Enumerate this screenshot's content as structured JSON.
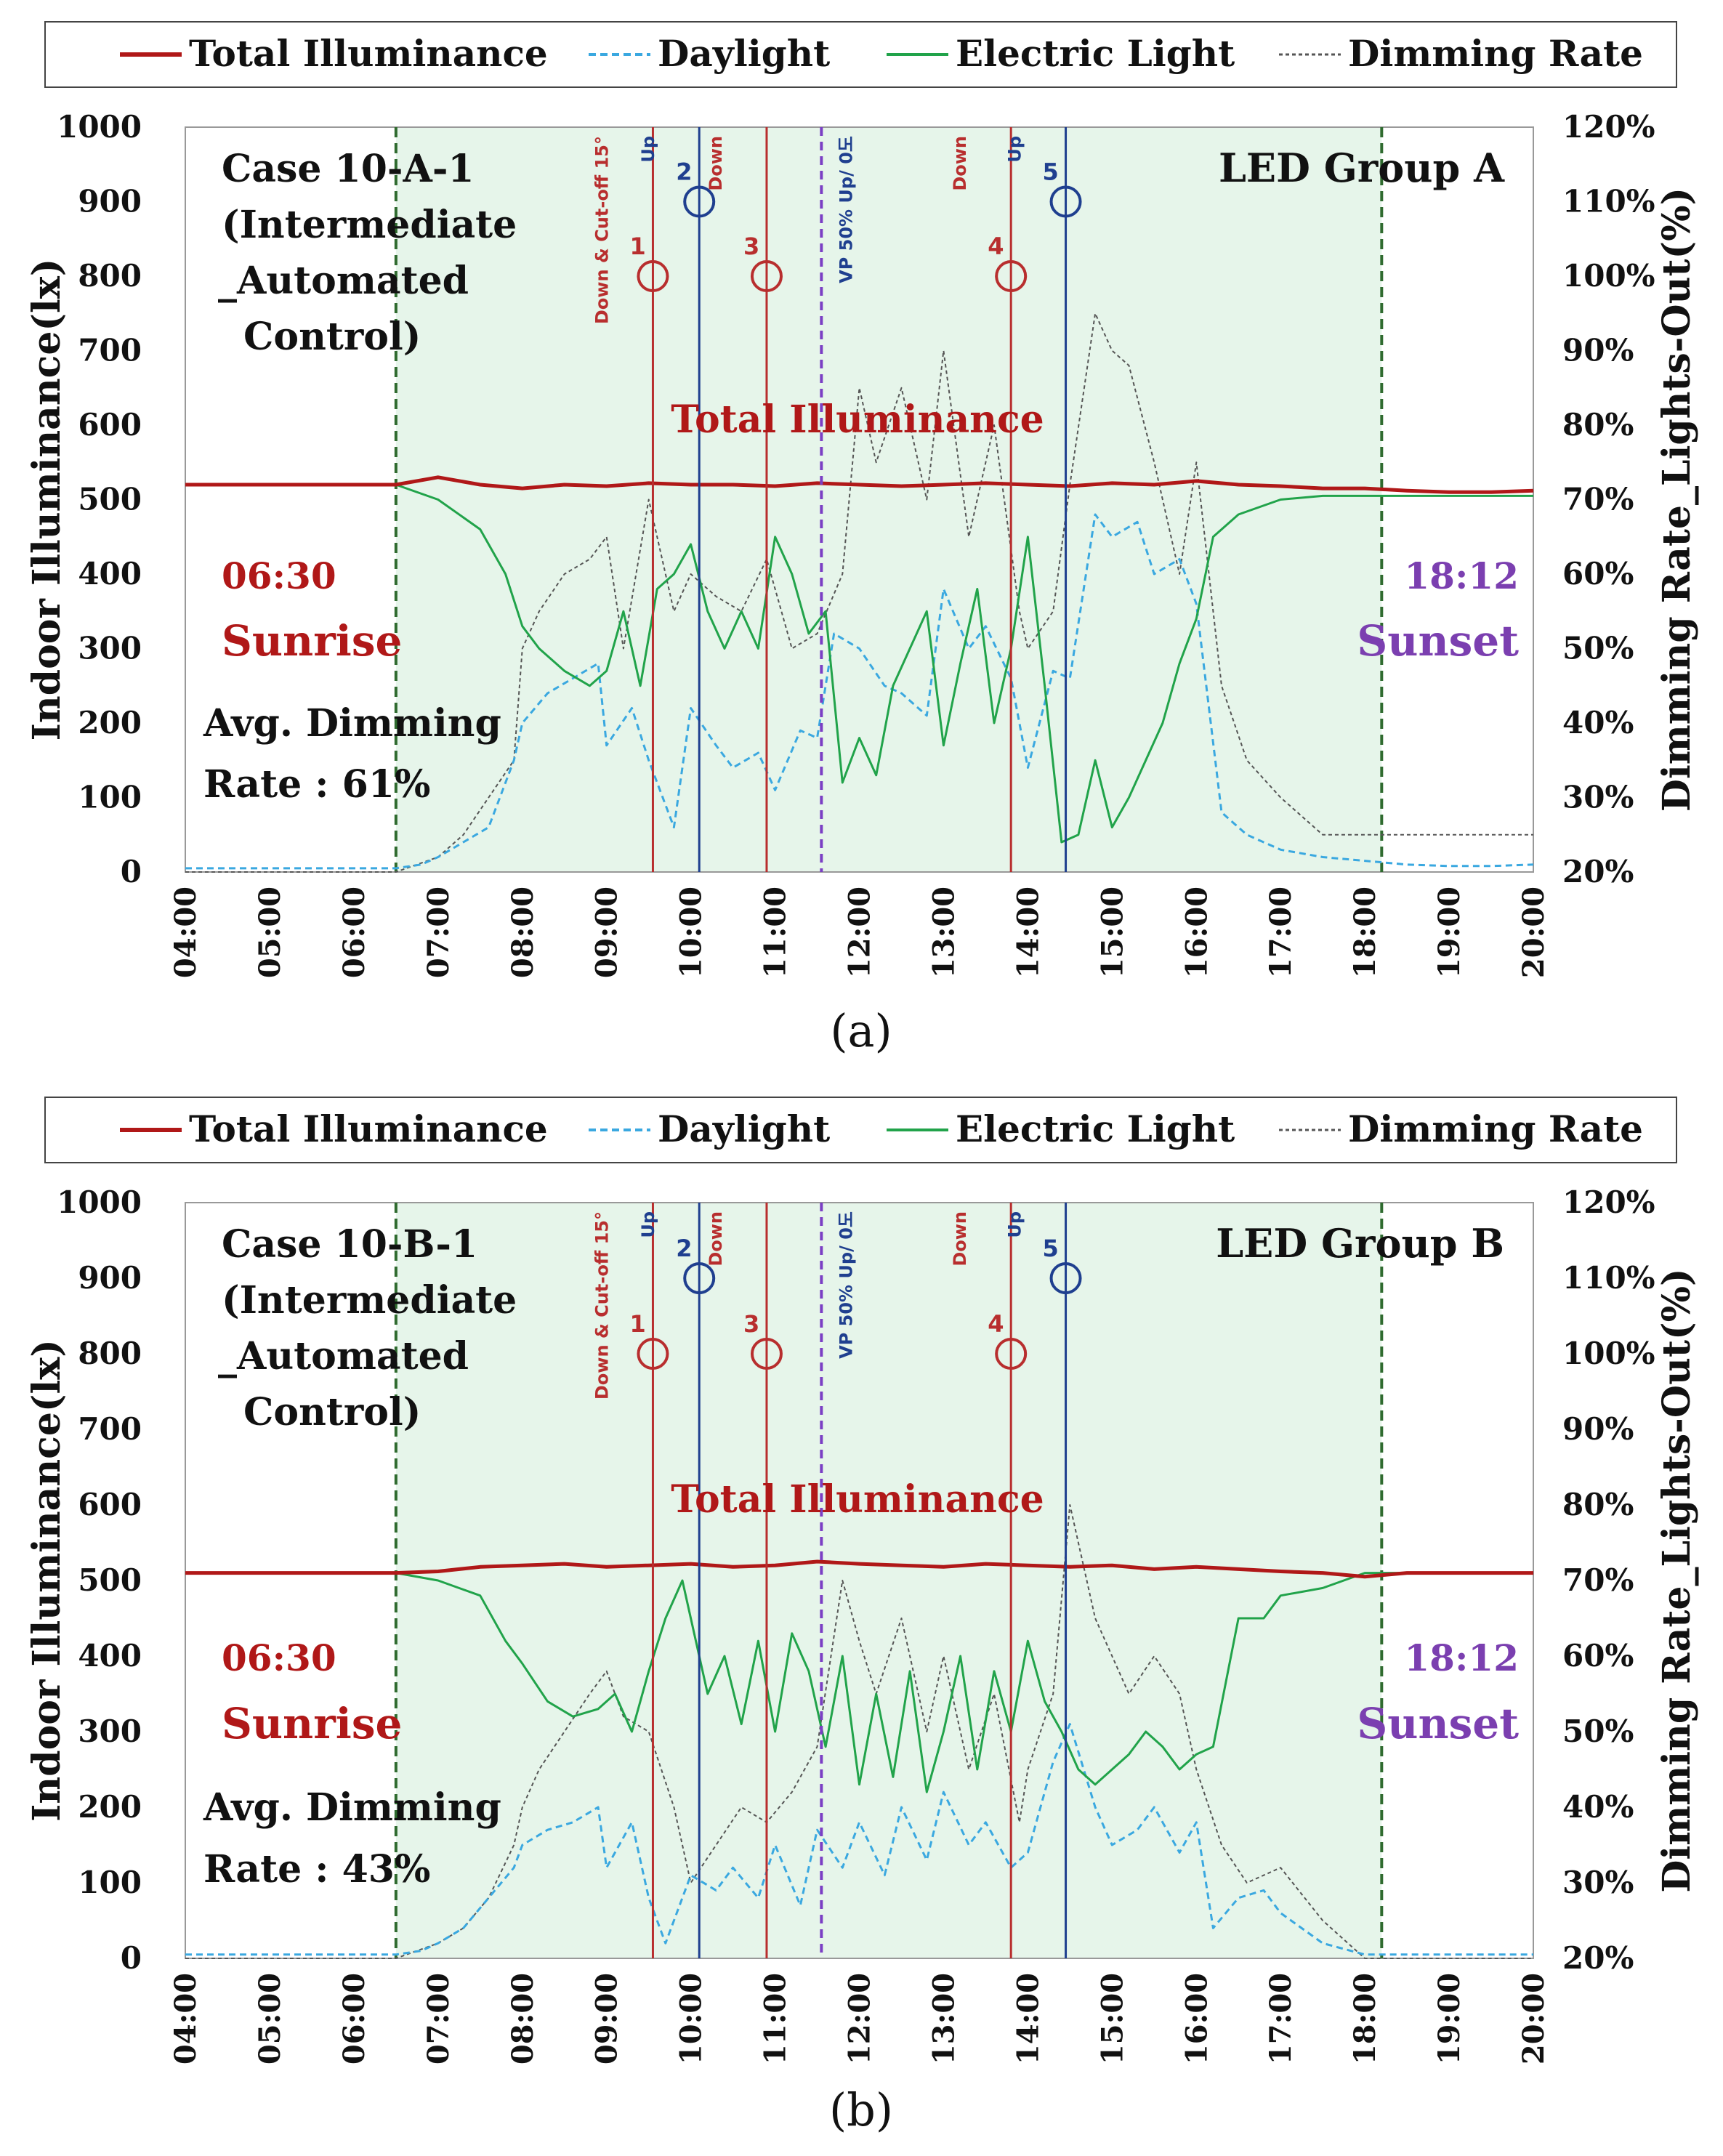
{
  "legend": {
    "total": "Total Illuminance",
    "daylight": "Daylight",
    "electric": "Electric Light",
    "dimming": "Dimming Rate"
  },
  "colors": {
    "total": "#b01818",
    "daylight": "#3aa8e0",
    "electric": "#21a34a",
    "dimming": "#555555",
    "occupied_bg": "#e6f5ea",
    "red_event": "#b82e2e",
    "blue_event": "#1f3f8f",
    "vp_line": "#7b3fc4",
    "sunrise_text": "#b01818",
    "sunset_text": "#7b3fb0"
  },
  "chart_data": [
    {
      "type": "line",
      "panel_label": "(a)",
      "case_title": [
        "Case 10-A-1",
        "(Intermediate",
        "_Automated",
        "Control)"
      ],
      "group_label": "LED Group A",
      "ylabel": "Indoor Illuminance(lx)",
      "ylabel_right": "Dimming Rate_Lights-Out(%)",
      "y_ticks": [
        "1000",
        "900",
        "800",
        "700",
        "600",
        "500",
        "400",
        "300",
        "200",
        "100",
        "0"
      ],
      "y2_ticks": [
        "120%",
        "110%",
        "100%",
        "90%",
        "80%",
        "70%",
        "60%",
        "50%",
        "40%",
        "30%",
        "20%"
      ],
      "x_ticks": [
        "04:00",
        "05:00",
        "06:00",
        "07:00",
        "08:00",
        "09:00",
        "10:00",
        "11:00",
        "12:00",
        "13:00",
        "14:00",
        "15:00",
        "16:00",
        "17:00",
        "18:00",
        "19:00",
        "20:00"
      ],
      "xlim": [
        4,
        20
      ],
      "ylim": [
        0,
        1000
      ],
      "y2lim": [
        20,
        120
      ],
      "sunrise_time": "06:30",
      "sunrise_label": "Sunrise",
      "sunrise_hour": 6.5,
      "sunset_time": "18:12",
      "sunset_label": "Sunset",
      "sunset_hour": 18.2,
      "total_annotation": "Total Illuminance",
      "avg_dimming": [
        "Avg. Dimming",
        "Rate : 61%"
      ],
      "vp_hour": 11.55,
      "vp_label": "VP 50% Up/ 0도",
      "events": [
        {
          "num": "1",
          "label": "Down & Cut-off 15°",
          "hour": 9.55,
          "color": "red",
          "circle_y": 800
        },
        {
          "num": "2",
          "label": "Up",
          "hour": 10.1,
          "color": "blue",
          "circle_y": 900
        },
        {
          "num": "3",
          "label": "Down",
          "hour": 10.9,
          "color": "red",
          "circle_y": 800
        },
        {
          "num": "4",
          "label": "Down",
          "hour": 13.8,
          "color": "red",
          "circle_y": 800
        },
        {
          "num": "5",
          "label": "Up",
          "hour": 14.45,
          "color": "blue",
          "circle_y": 900
        }
      ],
      "series": [
        {
          "name": "Total Illuminance",
          "unit": "lx",
          "x": [
            4,
            6.5,
            7,
            7.5,
            8,
            8.5,
            9,
            9.5,
            10,
            10.5,
            11,
            11.5,
            12,
            12.5,
            13,
            13.5,
            14,
            14.5,
            15,
            15.5,
            16,
            16.5,
            17,
            17.5,
            18,
            18.5,
            19,
            19.5,
            20
          ],
          "y": [
            520,
            520,
            530,
            520,
            515,
            520,
            518,
            522,
            520,
            520,
            518,
            522,
            520,
            518,
            520,
            522,
            520,
            518,
            522,
            520,
            525,
            520,
            518,
            515,
            515,
            512,
            510,
            510,
            512
          ]
        },
        {
          "name": "Daylight",
          "unit": "lx",
          "x": [
            4,
            6.5,
            6.8,
            7,
            7.3,
            7.6,
            7.9,
            8,
            8.3,
            8.6,
            8.9,
            9,
            9.3,
            9.5,
            9.8,
            10,
            10.3,
            10.5,
            10.8,
            11,
            11.3,
            11.5,
            11.7,
            12,
            12.3,
            12.5,
            12.8,
            13,
            13.3,
            13.5,
            13.8,
            14,
            14.3,
            14.5,
            14.8,
            15,
            15.3,
            15.5,
            15.8,
            16,
            16.3,
            16.6,
            17,
            17.5,
            18,
            18.5,
            19,
            19.5,
            20
          ],
          "y": [
            5,
            5,
            10,
            20,
            40,
            60,
            150,
            200,
            240,
            260,
            280,
            170,
            220,
            150,
            60,
            220,
            170,
            140,
            160,
            110,
            190,
            180,
            320,
            300,
            250,
            240,
            210,
            380,
            300,
            330,
            260,
            140,
            270,
            260,
            480,
            450,
            470,
            400,
            420,
            360,
            80,
            50,
            30,
            20,
            15,
            10,
            8,
            8,
            10
          ]
        },
        {
          "name": "Electric Light",
          "unit": "lx",
          "x": [
            4,
            6.5,
            7,
            7.5,
            7.8,
            8,
            8.2,
            8.5,
            8.8,
            9,
            9.2,
            9.4,
            9.6,
            9.8,
            10,
            10.2,
            10.4,
            10.6,
            10.8,
            11,
            11.2,
            11.4,
            11.6,
            11.8,
            12,
            12.2,
            12.4,
            12.6,
            12.8,
            13,
            13.2,
            13.4,
            13.6,
            13.8,
            14,
            14.2,
            14.4,
            14.6,
            14.8,
            15,
            15.2,
            15.4,
            15.6,
            15.8,
            16,
            16.2,
            16.5,
            17,
            17.5,
            18,
            18.5,
            19,
            19.5,
            20
          ],
          "y": [
            520,
            520,
            500,
            460,
            400,
            330,
            300,
            270,
            250,
            270,
            350,
            250,
            380,
            400,
            440,
            350,
            300,
            350,
            300,
            450,
            400,
            320,
            350,
            120,
            180,
            130,
            250,
            300,
            350,
            170,
            280,
            380,
            200,
            300,
            450,
            250,
            40,
            50,
            150,
            60,
            100,
            150,
            200,
            280,
            340,
            450,
            480,
            500,
            505,
            505,
            505,
            505,
            505,
            505
          ]
        },
        {
          "name": "Dimming Rate",
          "unit": "%",
          "x": [
            4,
            6.5,
            7,
            7.3,
            7.6,
            7.9,
            8,
            8.2,
            8.5,
            8.8,
            9,
            9.2,
            9.5,
            9.8,
            10,
            10.3,
            10.6,
            10.9,
            11.2,
            11.5,
            11.8,
            12,
            12.2,
            12.5,
            12.8,
            13,
            13.3,
            13.6,
            13.9,
            14,
            14.3,
            14.5,
            14.8,
            15,
            15.2,
            15.5,
            15.8,
            16,
            16.3,
            16.6,
            17,
            17.5,
            18,
            18.5,
            19,
            19.5,
            20
          ],
          "y": [
            20,
            20,
            22,
            25,
            30,
            35,
            50,
            55,
            60,
            62,
            65,
            50,
            70,
            55,
            60,
            57,
            55,
            62,
            50,
            52,
            60,
            85,
            75,
            85,
            70,
            90,
            65,
            80,
            55,
            50,
            55,
            72,
            95,
            90,
            88,
            75,
            60,
            75,
            45,
            35,
            30,
            25,
            25,
            25,
            25,
            25,
            25
          ]
        }
      ]
    },
    {
      "type": "line",
      "panel_label": "(b)",
      "case_title": [
        "Case 10-B-1",
        "(Intermediate",
        "_Automated",
        "Control)"
      ],
      "group_label": "LED Group B",
      "ylabel": "Indoor Illuminance(lx)",
      "ylabel_right": "Dimming Rate_Lights-Out(%)",
      "y_ticks": [
        "1000",
        "900",
        "800",
        "700",
        "600",
        "500",
        "400",
        "300",
        "200",
        "100",
        "0"
      ],
      "y2_ticks": [
        "120%",
        "110%",
        "100%",
        "90%",
        "80%",
        "70%",
        "60%",
        "50%",
        "40%",
        "30%",
        "20%"
      ],
      "x_ticks": [
        "04:00",
        "05:00",
        "06:00",
        "07:00",
        "08:00",
        "09:00",
        "10:00",
        "11:00",
        "12:00",
        "13:00",
        "14:00",
        "15:00",
        "16:00",
        "17:00",
        "18:00",
        "19:00",
        "20:00"
      ],
      "xlim": [
        4,
        20
      ],
      "ylim": [
        0,
        1000
      ],
      "y2lim": [
        20,
        120
      ],
      "sunrise_time": "06:30",
      "sunrise_label": "Sunrise",
      "sunrise_hour": 6.5,
      "sunset_time": "18:12",
      "sunset_label": "Sunset",
      "sunset_hour": 18.2,
      "total_annotation": "Total Illuminance",
      "avg_dimming": [
        "Avg. Dimming",
        "Rate : 43%"
      ],
      "vp_hour": 11.55,
      "vp_label": "VP 50% Up/ 0도",
      "events": [
        {
          "num": "1",
          "label": "Down & Cut-off 15°",
          "hour": 9.55,
          "color": "red",
          "circle_y": 800
        },
        {
          "num": "2",
          "label": "Up",
          "hour": 10.1,
          "color": "blue",
          "circle_y": 900
        },
        {
          "num": "3",
          "label": "Down",
          "hour": 10.9,
          "color": "red",
          "circle_y": 800
        },
        {
          "num": "4",
          "label": "Down",
          "hour": 13.8,
          "color": "red",
          "circle_y": 800
        },
        {
          "num": "5",
          "label": "Up",
          "hour": 14.45,
          "color": "blue",
          "circle_y": 900
        }
      ],
      "series": [
        {
          "name": "Total Illuminance",
          "unit": "lx",
          "x": [
            4,
            6.5,
            7,
            7.5,
            8,
            8.5,
            9,
            9.5,
            10,
            10.5,
            11,
            11.5,
            12,
            12.5,
            13,
            13.5,
            14,
            14.5,
            15,
            15.5,
            16,
            16.5,
            17,
            17.5,
            18,
            18.5,
            19,
            19.5,
            20
          ],
          "y": [
            510,
            510,
            512,
            518,
            520,
            522,
            518,
            520,
            522,
            518,
            520,
            525,
            522,
            520,
            518,
            522,
            520,
            518,
            520,
            515,
            518,
            515,
            512,
            510,
            505,
            510,
            510,
            510,
            510
          ]
        },
        {
          "name": "Daylight",
          "unit": "lx",
          "x": [
            4,
            6.5,
            6.8,
            7,
            7.3,
            7.6,
            7.9,
            8,
            8.3,
            8.6,
            8.9,
            9,
            9.3,
            9.5,
            9.7,
            10,
            10.3,
            10.5,
            10.8,
            11,
            11.3,
            11.5,
            11.8,
            12,
            12.3,
            12.5,
            12.8,
            13,
            13.3,
            13.5,
            13.8,
            14,
            14.3,
            14.5,
            14.8,
            15,
            15.3,
            15.5,
            15.8,
            16,
            16.2,
            16.5,
            16.8,
            17,
            17.5,
            18,
            18.5,
            19,
            19.5,
            20
          ],
          "y": [
            5,
            5,
            10,
            20,
            40,
            80,
            120,
            150,
            170,
            180,
            200,
            120,
            180,
            80,
            20,
            110,
            90,
            120,
            80,
            150,
            70,
            170,
            120,
            180,
            110,
            200,
            130,
            220,
            150,
            180,
            120,
            140,
            260,
            310,
            200,
            150,
            170,
            200,
            140,
            180,
            40,
            80,
            90,
            60,
            20,
            5,
            5,
            5,
            5,
            5
          ]
        },
        {
          "name": "Electric Light",
          "unit": "lx",
          "x": [
            4,
            6.5,
            7,
            7.5,
            7.8,
            8,
            8.3,
            8.6,
            8.9,
            9.1,
            9.3,
            9.5,
            9.7,
            9.9,
            10,
            10.2,
            10.4,
            10.6,
            10.8,
            11,
            11.2,
            11.4,
            11.6,
            11.8,
            12,
            12.2,
            12.4,
            12.6,
            12.8,
            13,
            13.2,
            13.4,
            13.6,
            13.8,
            14,
            14.2,
            14.4,
            14.6,
            14.8,
            15,
            15.2,
            15.4,
            15.6,
            15.8,
            16,
            16.2,
            16.5,
            16.8,
            17,
            17.5,
            18,
            18.5,
            19,
            19.5,
            20
          ],
          "y": [
            510,
            510,
            500,
            480,
            420,
            390,
            340,
            320,
            330,
            350,
            300,
            380,
            450,
            500,
            450,
            350,
            400,
            310,
            420,
            300,
            430,
            380,
            280,
            400,
            230,
            350,
            240,
            380,
            220,
            300,
            400,
            250,
            380,
            300,
            420,
            340,
            300,
            250,
            230,
            250,
            270,
            300,
            280,
            250,
            270,
            280,
            450,
            450,
            480,
            490,
            510,
            510,
            510,
            510,
            510
          ]
        },
        {
          "name": "Dimming Rate",
          "unit": "%",
          "x": [
            4,
            6.5,
            7,
            7.3,
            7.6,
            7.9,
            8,
            8.2,
            8.5,
            8.8,
            9,
            9.2,
            9.5,
            9.8,
            10,
            10.3,
            10.6,
            10.9,
            11.2,
            11.5,
            11.8,
            12,
            12.2,
            12.5,
            12.8,
            13,
            13.3,
            13.6,
            13.9,
            14,
            14.3,
            14.5,
            14.8,
            15,
            15.2,
            15.5,
            15.8,
            16,
            16.3,
            16.6,
            17,
            17.5,
            18,
            18.5,
            19,
            19.5,
            20
          ],
          "y": [
            20,
            20,
            22,
            24,
            28,
            35,
            40,
            45,
            50,
            55,
            58,
            52,
            50,
            40,
            30,
            35,
            40,
            38,
            42,
            48,
            70,
            62,
            55,
            65,
            50,
            60,
            45,
            55,
            38,
            45,
            55,
            80,
            65,
            60,
            55,
            60,
            55,
            45,
            35,
            30,
            32,
            25,
            20,
            20,
            20,
            20,
            20
          ]
        }
      ]
    }
  ]
}
